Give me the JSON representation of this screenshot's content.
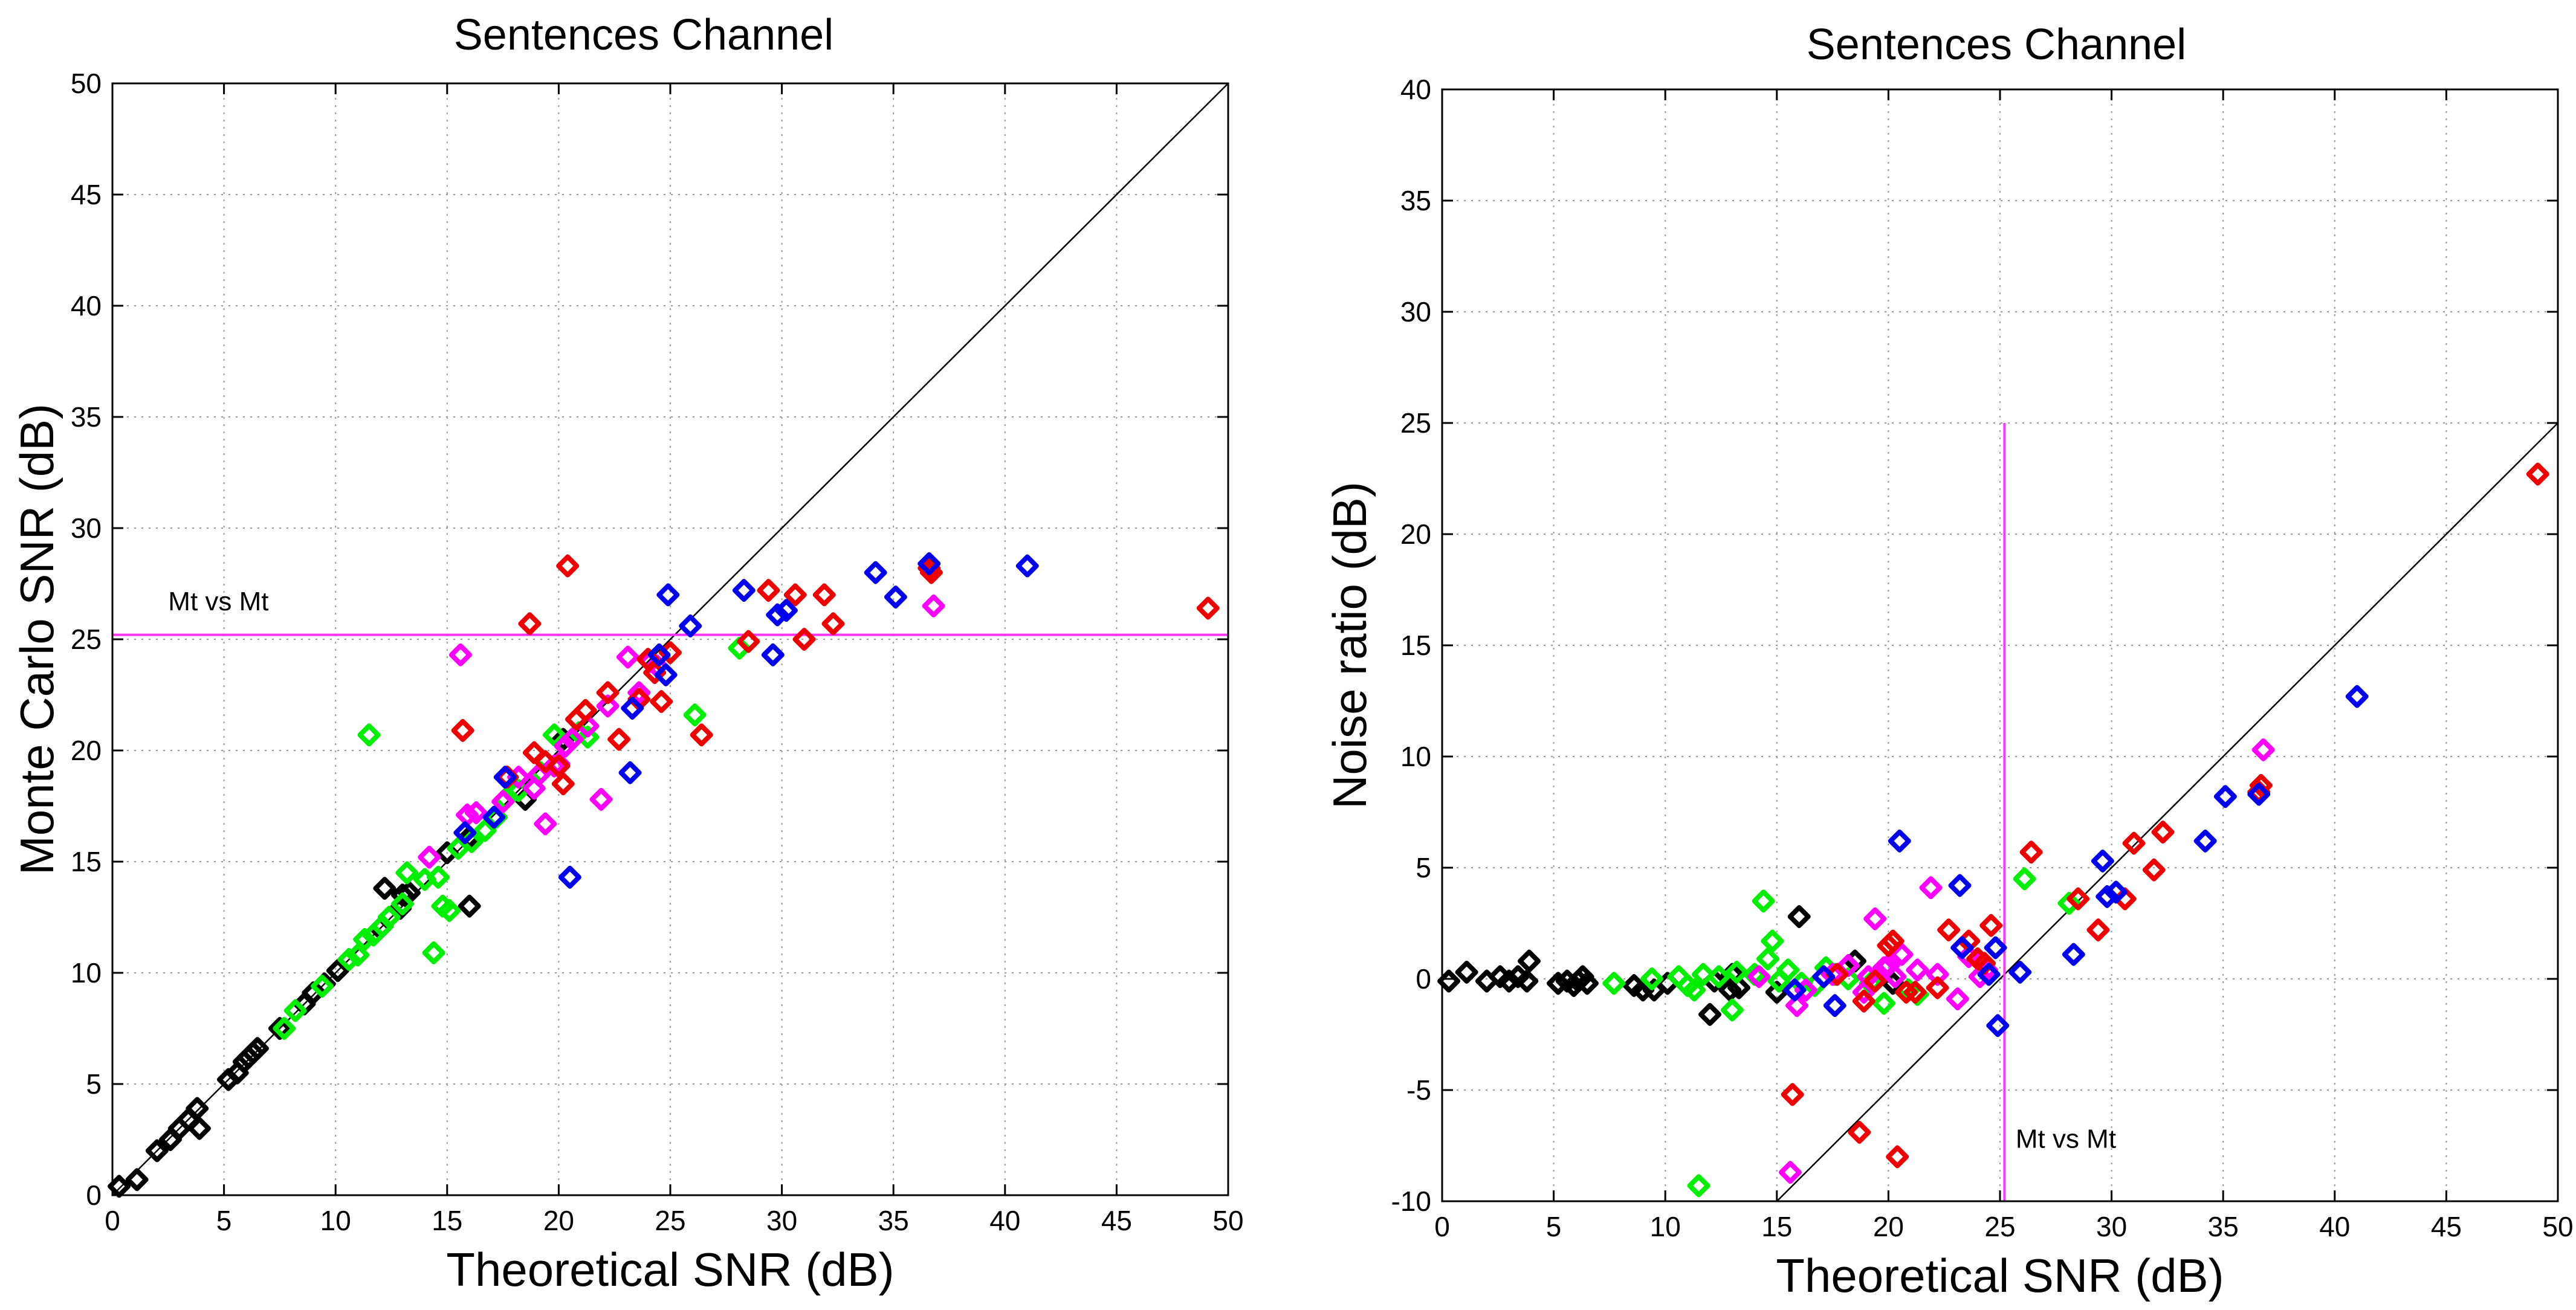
{
  "chart_data": [
    {
      "type": "scatter",
      "title": "Sentences Channel",
      "xlabel": "Theoretical SNR (dB)",
      "ylabel": "Monte Carlo SNR (dB)",
      "xlim": [
        0,
        50
      ],
      "ylim": [
        0,
        50
      ],
      "xticks": [
        0,
        5,
        10,
        15,
        20,
        25,
        30,
        35,
        40,
        45,
        50
      ],
      "yticks": [
        0,
        5,
        10,
        15,
        20,
        25,
        30,
        35,
        40,
        45,
        50
      ],
      "grid": true,
      "reference_line": {
        "kind": "diagonal",
        "from": [
          0,
          0
        ],
        "to": [
          50,
          50
        ],
        "color": "#000000"
      },
      "threshold_line": {
        "kind": "horizontal",
        "value": 25.2,
        "color": "#ff33ff",
        "label": "Mt vs Mt",
        "label_x": 2.5,
        "label_y": 26.3
      },
      "marker": "diamond",
      "series": [
        {
          "name": "black",
          "color": "#000000",
          "points": [
            [
              0.3,
              0.4
            ],
            [
              1.1,
              0.7
            ],
            [
              2,
              2
            ],
            [
              2.6,
              2.5
            ],
            [
              3,
              3
            ],
            [
              3.4,
              3.4
            ],
            [
              3.8,
              3.9
            ],
            [
              3.9,
              3.0
            ],
            [
              5.2,
              5.2
            ],
            [
              5.6,
              5.5
            ],
            [
              5.9,
              6.0
            ],
            [
              6.1,
              6.2
            ],
            [
              6.3,
              6.4
            ],
            [
              6.5,
              6.6
            ],
            [
              7.5,
              7.5
            ],
            [
              8.6,
              8.6
            ],
            [
              9,
              9.1
            ],
            [
              9.5,
              9.5
            ],
            [
              10.1,
              10.1
            ],
            [
              12,
              12
            ],
            [
              12.2,
              13.8
            ],
            [
              12.9,
              12.9
            ],
            [
              13,
              13.5
            ],
            [
              13.3,
              13.6
            ],
            [
              15,
              15.4
            ],
            [
              16,
              16.1
            ],
            [
              16,
              13
            ],
            [
              18.5,
              17.8
            ],
            [
              20.2,
              20.5
            ]
          ]
        },
        {
          "name": "green",
          "color": "#00ee00",
          "points": [
            [
              7.7,
              7.5
            ],
            [
              8.2,
              8.3
            ],
            [
              9.4,
              9.4
            ],
            [
              10.6,
              10.6
            ],
            [
              11,
              10.8
            ],
            [
              11.3,
              11.5
            ],
            [
              11.5,
              20.7
            ],
            [
              11.7,
              11.7
            ],
            [
              12.1,
              12.1
            ],
            [
              12.4,
              12.5
            ],
            [
              13,
              13.1
            ],
            [
              13.2,
              14.5
            ],
            [
              14,
              14.2
            ],
            [
              14.4,
              10.9
            ],
            [
              14.6,
              14.3
            ],
            [
              14.8,
              13
            ],
            [
              15.1,
              12.8
            ],
            [
              15.5,
              15.6
            ],
            [
              16.1,
              15.9
            ],
            [
              16.7,
              16.4
            ],
            [
              17.2,
              17
            ],
            [
              17.6,
              17.8
            ],
            [
              18.2,
              18.2
            ],
            [
              19.2,
              19
            ],
            [
              19.8,
              20.7
            ],
            [
              20.9,
              20.8
            ],
            [
              21.3,
              20.6
            ],
            [
              28.1,
              24.6
            ],
            [
              26.1,
              21.6
            ]
          ]
        },
        {
          "name": "magenta",
          "color": "#ff00ff",
          "points": [
            [
              14.2,
              15.2
            ],
            [
              15.6,
              24.3
            ],
            [
              15.9,
              17.1
            ],
            [
              16.3,
              17.2
            ],
            [
              17.5,
              17.7
            ],
            [
              18.2,
              18.8
            ],
            [
              18.9,
              18.3
            ],
            [
              19.1,
              18.9
            ],
            [
              19.4,
              16.7
            ],
            [
              19.8,
              19.3
            ],
            [
              20,
              19.4
            ],
            [
              20.3,
              20.2
            ],
            [
              20.6,
              20.5
            ],
            [
              21.3,
              21.1
            ],
            [
              21.9,
              17.8
            ],
            [
              22.2,
              22
            ],
            [
              23.1,
              24.2
            ],
            [
              23.6,
              22.6
            ],
            [
              24.1,
              24
            ],
            [
              24.4,
              23.8
            ],
            [
              36.8,
              26.5
            ]
          ]
        },
        {
          "name": "red",
          "color": "#ee0000",
          "points": [
            [
              17.7,
              18.8
            ],
            [
              18.7,
              25.7
            ],
            [
              18.9,
              19.9
            ],
            [
              19.4,
              19.5
            ],
            [
              20,
              19.3
            ],
            [
              20.2,
              18.5
            ],
            [
              20.4,
              28.3
            ],
            [
              20.8,
              21.4
            ],
            [
              21.2,
              21.8
            ],
            [
              22.2,
              22.6
            ],
            [
              22.7,
              20.5
            ],
            [
              23.6,
              22.3
            ],
            [
              24,
              24.1
            ],
            [
              24.3,
              23.5
            ],
            [
              24.6,
              22.2
            ],
            [
              25,
              24.4
            ],
            [
              26.4,
              20.7
            ],
            [
              28.5,
              24.9
            ],
            [
              29.4,
              27.2
            ],
            [
              30.6,
              27
            ],
            [
              31,
              25
            ],
            [
              31.9,
              27
            ],
            [
              32.3,
              25.7
            ],
            [
              36.6,
              28.2
            ],
            [
              36.7,
              28
            ],
            [
              49.1,
              26.4
            ],
            [
              15.7,
              20.9
            ]
          ]
        },
        {
          "name": "blue",
          "color": "#0000ee",
          "points": [
            [
              15.8,
              16.3
            ],
            [
              17.1,
              17
            ],
            [
              17.6,
              18.8
            ],
            [
              20.5,
              14.3
            ],
            [
              23.2,
              19
            ],
            [
              23.3,
              21.9
            ],
            [
              24.5,
              24.3
            ],
            [
              24.8,
              23.4
            ],
            [
              24.9,
              27
            ],
            [
              25.9,
              25.6
            ],
            [
              28.3,
              27.2
            ],
            [
              29.6,
              24.3
            ],
            [
              29.8,
              26.1
            ],
            [
              30.2,
              26.3
            ],
            [
              34.2,
              28
            ],
            [
              35.1,
              26.9
            ],
            [
              36.6,
              28.4
            ],
            [
              41,
              28.3
            ]
          ]
        }
      ]
    },
    {
      "type": "scatter",
      "title": "Sentences Channel",
      "xlabel": "Theoretical SNR (dB)",
      "ylabel": "Noise ratio (dB)",
      "xlim": [
        0,
        50
      ],
      "ylim": [
        -10,
        40
      ],
      "xticks": [
        0,
        5,
        10,
        15,
        20,
        25,
        30,
        35,
        40,
        45,
        50
      ],
      "yticks": [
        -10,
        -5,
        0,
        5,
        10,
        15,
        20,
        25,
        30,
        35,
        40
      ],
      "grid": true,
      "reference_line": {
        "kind": "diagonal",
        "from": [
          15,
          -10
        ],
        "to": [
          50,
          25
        ],
        "color": "#000000"
      },
      "threshold_line": {
        "kind": "vertical",
        "value": 25.2,
        "y_from": -10,
        "y_to": 25,
        "color": "#ff33ff",
        "label": "Mt vs Mt",
        "label_x": 25.7,
        "label_y": -7.6
      },
      "marker": "diamond",
      "series": [
        {
          "name": "black",
          "color": "#000000",
          "points": [
            [
              0.3,
              -0.1
            ],
            [
              1.1,
              0.3
            ],
            [
              2,
              -0.1
            ],
            [
              2.6,
              0.1
            ],
            [
              3,
              -0.1
            ],
            [
              3.4,
              0.1
            ],
            [
              3.8,
              -0.1
            ],
            [
              3.9,
              0.8
            ],
            [
              5.2,
              -0.2
            ],
            [
              5.6,
              -0.1
            ],
            [
              5.9,
              -0.3
            ],
            [
              6.1,
              -0.1
            ],
            [
              6.3,
              0.1
            ],
            [
              6.5,
              -0.2
            ],
            [
              8.6,
              -0.3
            ],
            [
              9,
              -0.5
            ],
            [
              9.5,
              -0.5
            ],
            [
              10.1,
              -0.2
            ],
            [
              12,
              -1.6
            ],
            [
              12.2,
              -0.1
            ],
            [
              12.9,
              -0.5
            ],
            [
              13,
              0.2
            ],
            [
              13.3,
              -0.4
            ],
            [
              15,
              -0.6
            ],
            [
              16,
              2.8
            ],
            [
              18.5,
              0.8
            ],
            [
              20.2,
              -0.2
            ]
          ]
        },
        {
          "name": "green",
          "color": "#00ee00",
          "points": [
            [
              7.7,
              -0.2
            ],
            [
              9.4,
              0
            ],
            [
              10.6,
              0.1
            ],
            [
              11,
              -0.3
            ],
            [
              11.3,
              -0.5
            ],
            [
              11.5,
              -9.3
            ],
            [
              11.7,
              0.2
            ],
            [
              12.4,
              0.1
            ],
            [
              13,
              -1.4
            ],
            [
              13.2,
              0.3
            ],
            [
              14,
              0.2
            ],
            [
              14.4,
              3.5
            ],
            [
              14.6,
              0.9
            ],
            [
              14.8,
              1.7
            ],
            [
              15.1,
              -0.1
            ],
            [
              15.5,
              0.4
            ],
            [
              16.1,
              -0.2
            ],
            [
              16.7,
              -0.3
            ],
            [
              17.2,
              0.5
            ],
            [
              17.6,
              0.2
            ],
            [
              18.2,
              0
            ],
            [
              19.2,
              -0.2
            ],
            [
              19.8,
              -1.1
            ],
            [
              20.9,
              -0.5
            ],
            [
              21.3,
              -0.7
            ],
            [
              26.1,
              4.5
            ],
            [
              28.1,
              3.4
            ]
          ]
        },
        {
          "name": "magenta",
          "color": "#ff00ff",
          "points": [
            [
              14.2,
              0.1
            ],
            [
              15.6,
              -8.7
            ],
            [
              15.9,
              -1.2
            ],
            [
              16.3,
              -0.5
            ],
            [
              17.5,
              0.2
            ],
            [
              18.2,
              0.6
            ],
            [
              18.9,
              -0.6
            ],
            [
              19.1,
              0.1
            ],
            [
              19.4,
              2.7
            ],
            [
              19.8,
              0.5
            ],
            [
              20,
              0.6
            ],
            [
              20.3,
              0.1
            ],
            [
              20.6,
              1.1
            ],
            [
              21.3,
              0.4
            ],
            [
              21.9,
              4.1
            ],
            [
              22.2,
              0.2
            ],
            [
              23.1,
              -0.9
            ],
            [
              23.6,
              1.0
            ],
            [
              24.1,
              0.1
            ],
            [
              24.4,
              0.4
            ],
            [
              36.8,
              10.3
            ]
          ]
        },
        {
          "name": "red",
          "color": "#ee0000",
          "points": [
            [
              15.7,
              -5.2
            ],
            [
              17.7,
              0.2
            ],
            [
              18.7,
              -6.9
            ],
            [
              18.9,
              -1.0
            ],
            [
              19.4,
              -0.1
            ],
            [
              20,
              1.5
            ],
            [
              20.2,
              1.7
            ],
            [
              20.4,
              -8.0
            ],
            [
              20.8,
              -0.6
            ],
            [
              21.2,
              -0.6
            ],
            [
              22.2,
              -0.4
            ],
            [
              22.7,
              2.2
            ],
            [
              23.6,
              1.7
            ],
            [
              24,
              0.9
            ],
            [
              24.3,
              0.7
            ],
            [
              24.6,
              2.4
            ],
            [
              26.4,
              5.7
            ],
            [
              28.5,
              3.6
            ],
            [
              29.4,
              2.2
            ],
            [
              30.6,
              3.6
            ],
            [
              31,
              6.1
            ],
            [
              31.9,
              4.9
            ],
            [
              32.3,
              6.6
            ],
            [
              36.6,
              8.4
            ],
            [
              36.7,
              8.7
            ],
            [
              49.1,
              22.7
            ]
          ]
        },
        {
          "name": "blue",
          "color": "#0000ee",
          "points": [
            [
              15.8,
              -0.5
            ],
            [
              17.1,
              0.1
            ],
            [
              17.6,
              -1.2
            ],
            [
              20.5,
              6.2
            ],
            [
              23.2,
              4.2
            ],
            [
              23.3,
              1.4
            ],
            [
              24.5,
              0.2
            ],
            [
              24.8,
              1.4
            ],
            [
              24.9,
              -2.1
            ],
            [
              25.9,
              0.3
            ],
            [
              28.3,
              1.1
            ],
            [
              29.6,
              5.3
            ],
            [
              29.8,
              3.7
            ],
            [
              30.2,
              3.9
            ],
            [
              34.2,
              6.2
            ],
            [
              35.1,
              8.2
            ],
            [
              36.6,
              8.3
            ],
            [
              41,
              12.7
            ]
          ]
        }
      ]
    }
  ]
}
